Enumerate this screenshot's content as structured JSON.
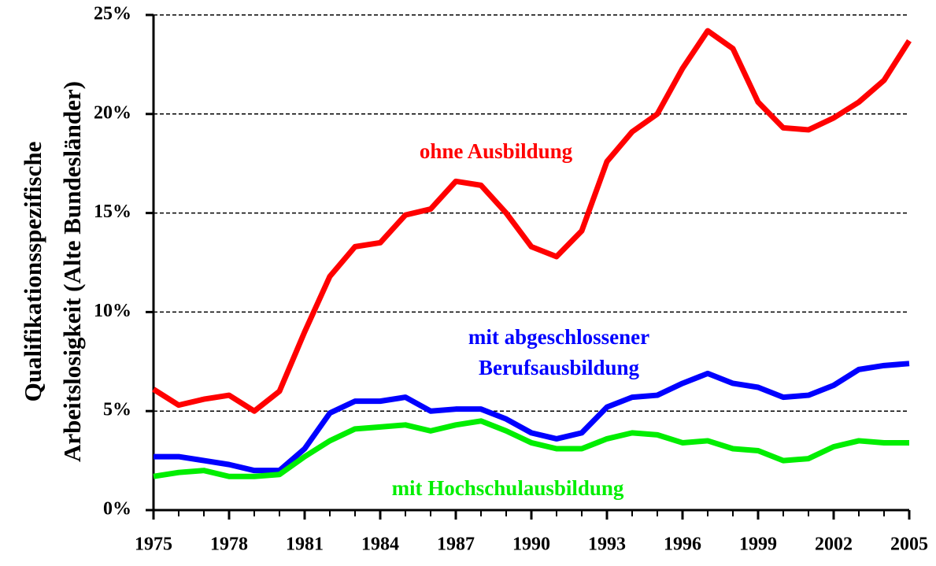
{
  "chart_data": {
    "type": "line",
    "y_label": [
      "Qualifikationsspezifische",
      "Arbeitslosigkeit (Alte Bundesländer)"
    ],
    "x": [
      1975,
      1976,
      1977,
      1978,
      1979,
      1980,
      1981,
      1982,
      1983,
      1984,
      1985,
      1986,
      1987,
      1988,
      1989,
      1990,
      1991,
      1992,
      1993,
      1994,
      1995,
      1996,
      1997,
      1998,
      1999,
      2000,
      2001,
      2002,
      2003,
      2004,
      2005
    ],
    "series": [
      {
        "name": "ohne Ausbildung",
        "color": "#ff0000",
        "values": [
          6.1,
          5.3,
          5.6,
          5.8,
          5.0,
          6.0,
          9.0,
          11.8,
          13.3,
          13.5,
          14.9,
          15.2,
          16.6,
          16.4,
          15.0,
          13.3,
          12.8,
          14.1,
          17.6,
          19.1,
          20.0,
          22.3,
          24.2,
          23.3,
          20.6,
          19.3,
          19.2,
          19.8,
          20.6,
          21.7,
          23.7
        ]
      },
      {
        "name": "mit abgeschlossener Berufsausbildung",
        "color": "#0000ff",
        "values": [
          2.7,
          2.7,
          2.5,
          2.3,
          2.0,
          2.0,
          3.1,
          4.9,
          5.5,
          5.5,
          5.7,
          5.0,
          5.1,
          5.1,
          4.6,
          3.9,
          3.6,
          3.9,
          5.2,
          5.7,
          5.8,
          6.4,
          6.9,
          6.4,
          6.2,
          5.7,
          5.8,
          6.3,
          7.1,
          7.3,
          7.4
        ]
      },
      {
        "name": "mit Hochschulausbildung",
        "color": "#00ee00",
        "values": [
          1.7,
          1.9,
          2.0,
          1.7,
          1.7,
          1.8,
          2.7,
          3.5,
          4.1,
          4.2,
          4.3,
          4.0,
          4.3,
          4.5,
          4.0,
          3.4,
          3.1,
          3.1,
          3.6,
          3.9,
          3.8,
          3.4,
          3.5,
          3.1,
          3.0,
          2.5,
          2.6,
          3.2,
          3.5,
          3.4,
          3.4
        ]
      }
    ],
    "xlim": [
      1975,
      2005
    ],
    "xticks": [
      1975,
      1978,
      1981,
      1984,
      1987,
      1990,
      1993,
      1996,
      1999,
      2002,
      2005
    ],
    "ylim": [
      0,
      25
    ],
    "yticks": [
      {
        "value": 0,
        "label": "0%"
      },
      {
        "value": 5,
        "label": "5%"
      },
      {
        "value": 10,
        "label": "10%"
      },
      {
        "value": 15,
        "label": "15%"
      },
      {
        "value": 20,
        "label": "20%"
      },
      {
        "value": 25,
        "label": "25%"
      }
    ],
    "grid": true
  }
}
